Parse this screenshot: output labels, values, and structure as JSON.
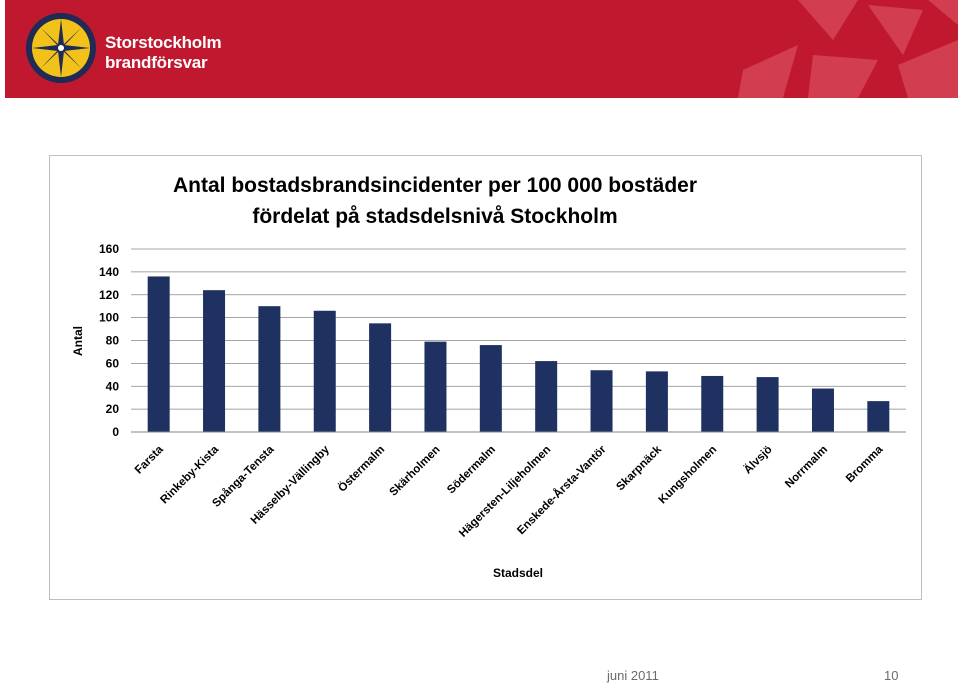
{
  "header": {
    "org_line1": "Storstockholm",
    "org_line2": "brandförsvar",
    "brand_color": "#c0192f",
    "logo_icon": "star-compass-icon"
  },
  "chart_data": {
    "type": "bar",
    "title_line1": "Antal bostadsbrandsincidenter per 100 000 bostäder",
    "title_line2": "fördelat på stadsdelsnivå Stockholm",
    "xlabel": "Stadsdel",
    "ylabel": "Antal",
    "ylim": [
      0,
      160
    ],
    "yticks": [
      0,
      20,
      40,
      60,
      80,
      100,
      120,
      140,
      160
    ],
    "grid": true,
    "bar_color": "#1f3160",
    "categories": [
      "Farsta",
      "Rinkeby-Kista",
      "Spånga-Tensta",
      "Hässelby-Vällingby",
      "Östermalm",
      "Skärholmen",
      "Södermalm",
      "Hägersten-Liljeholmen",
      "Enskede-Årsta-Vantör",
      "Skarpnäck",
      "Kungsholmen",
      "Älvsjö",
      "Norrmalm",
      "Bromma"
    ],
    "values": [
      136,
      124,
      110,
      106,
      95,
      79,
      76,
      62,
      54,
      53,
      49,
      48,
      38,
      27
    ]
  },
  "footer": {
    "date": "juni 2011",
    "page": "10"
  }
}
